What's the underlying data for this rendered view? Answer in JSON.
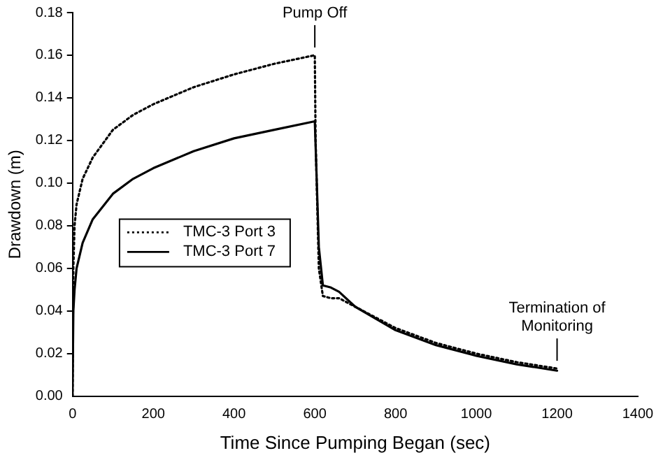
{
  "chart_data": {
    "type": "line",
    "xlabel": "Time Since Pumping Began (sec)",
    "ylabel": "Drawdown (m)",
    "xlim": [
      0,
      1400
    ],
    "xticks": [
      0,
      200,
      400,
      600,
      800,
      1000,
      1200,
      1400
    ],
    "ylim": [
      0,
      0.18
    ],
    "yticks": [
      {
        "value": 0,
        "label": "0.00"
      },
      {
        "value": 0.02,
        "label": "0.02"
      },
      {
        "value": 0.04,
        "label": "0.04"
      },
      {
        "value": 0.06,
        "label": "0.06"
      },
      {
        "value": 0.08,
        "label": "0.08"
      },
      {
        "value": 0.1,
        "label": "0.10"
      },
      {
        "value": 0.12,
        "label": "0.12"
      },
      {
        "value": 0.14,
        "label": "0.14"
      },
      {
        "value": 0.16,
        "label": "0.16"
      },
      {
        "value": 0.18,
        "label": "0.18"
      }
    ],
    "grid": false,
    "legend": "left",
    "marker": "none",
    "annotations": [
      {
        "text": "Pump Off",
        "x": 600,
        "y": 0.161
      },
      {
        "text": "Termination of Monitoring",
        "x": 1200,
        "y": 0.014
      }
    ],
    "series": [
      {
        "name": "TMC-3 Port 3",
        "color": "#000000",
        "line_style": "dotted",
        "x": [
          0,
          2,
          5,
          10,
          25,
          50,
          100,
          150,
          200,
          300,
          400,
          500,
          600,
          602,
          610,
          620,
          640,
          660,
          700,
          800,
          900,
          1000,
          1100,
          1200
        ],
        "values": [
          0,
          0.06,
          0.08,
          0.09,
          0.102,
          0.112,
          0.125,
          0.132,
          0.137,
          0.145,
          0.151,
          0.156,
          0.16,
          0.12,
          0.06,
          0.047,
          0.046,
          0.046,
          0.042,
          0.032,
          0.025,
          0.02,
          0.016,
          0.013
        ]
      },
      {
        "name": "TMC-3 Port 7",
        "color": "#000000",
        "line_style": "solid",
        "x": [
          0,
          2,
          5,
          10,
          25,
          50,
          100,
          150,
          200,
          300,
          400,
          500,
          600,
          605,
          610,
          620,
          640,
          660,
          700,
          800,
          900,
          1000,
          1100,
          1200
        ],
        "values": [
          0,
          0.04,
          0.05,
          0.06,
          0.072,
          0.083,
          0.095,
          0.102,
          0.107,
          0.115,
          0.121,
          0.125,
          0.129,
          0.1,
          0.07,
          0.052,
          0.051,
          0.049,
          0.042,
          0.031,
          0.024,
          0.019,
          0.015,
          0.012
        ]
      }
    ]
  }
}
